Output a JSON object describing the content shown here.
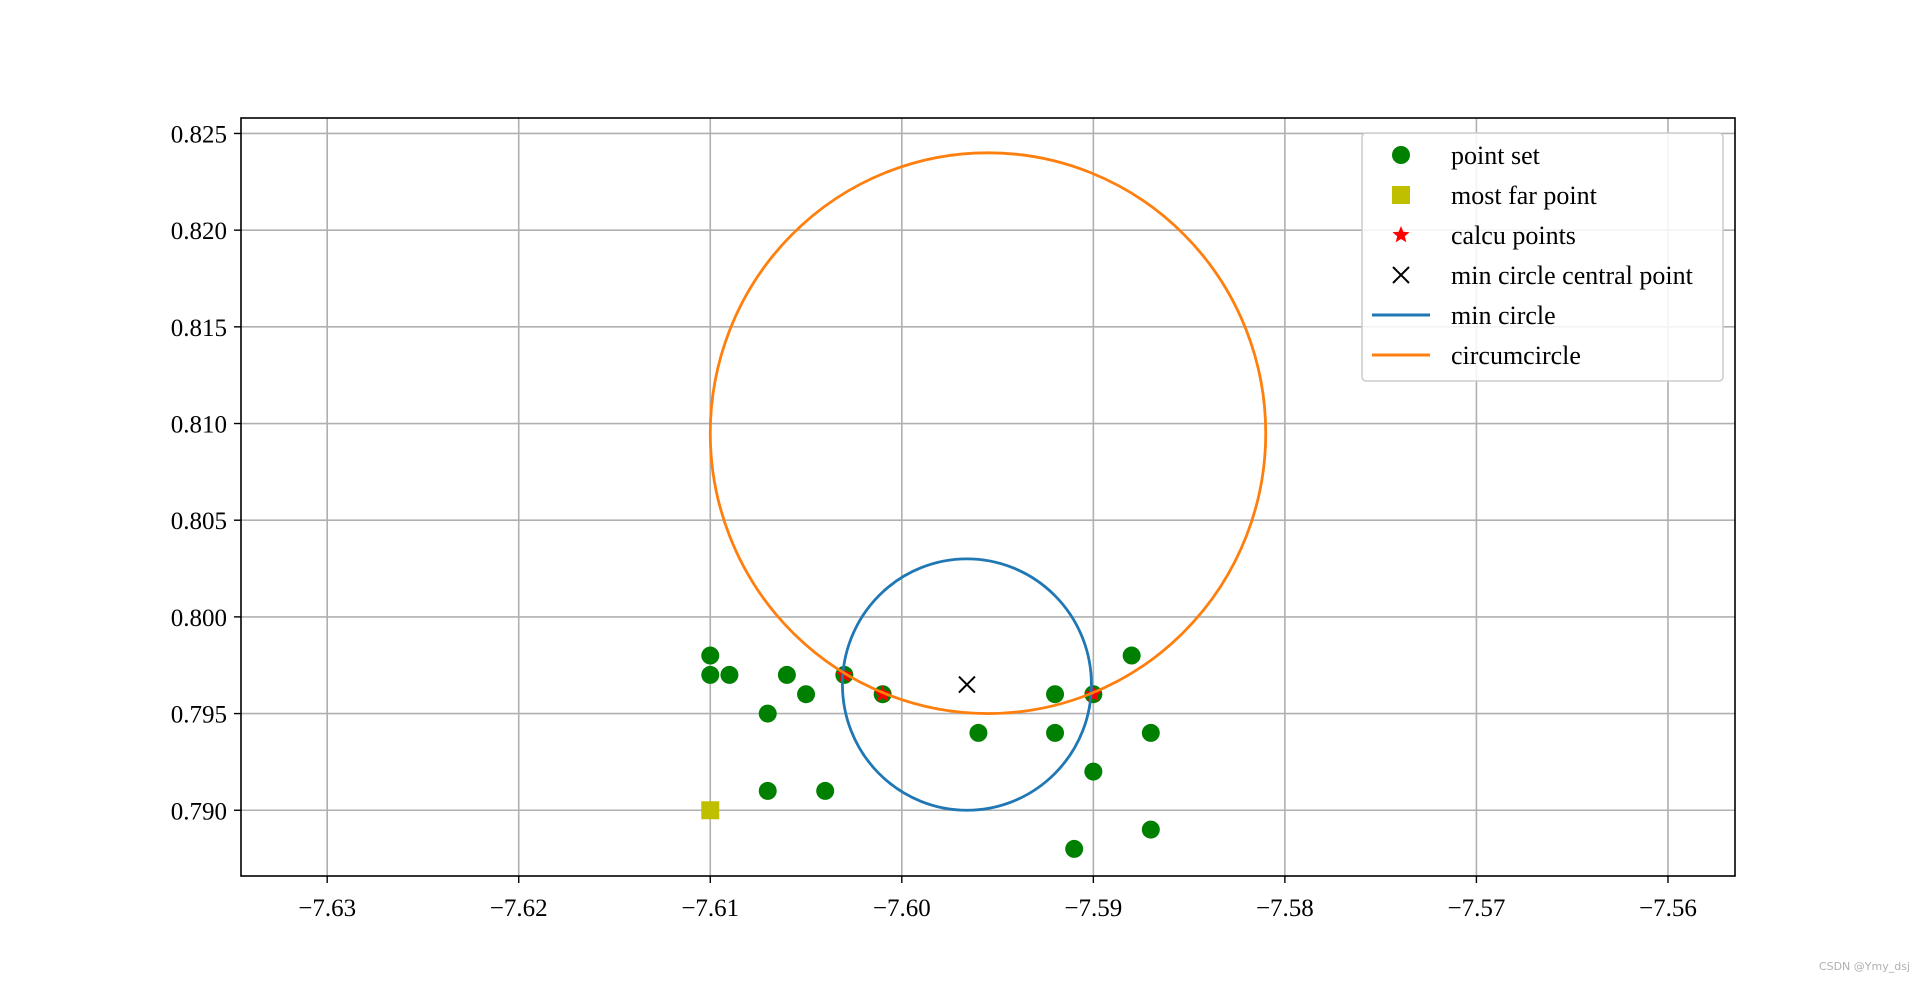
{
  "chart_data": {
    "type": "scatter",
    "title": "",
    "xlabel": "",
    "ylabel": "",
    "xlim": [
      -7.6345,
      -7.5565
    ],
    "ylim": [
      0.7866,
      0.8258
    ],
    "xticks": [
      -7.63,
      -7.62,
      -7.61,
      -7.6,
      -7.59,
      -7.58,
      -7.57,
      -7.56
    ],
    "xtick_labels": [
      "−7.63",
      "−7.62",
      "−7.61",
      "−7.60",
      "−7.59",
      "−7.58",
      "−7.57",
      "−7.56"
    ],
    "yticks": [
      0.79,
      0.795,
      0.8,
      0.805,
      0.81,
      0.815,
      0.82,
      0.825
    ],
    "ytick_labels": [
      "0.790",
      "0.795",
      "0.800",
      "0.805",
      "0.810",
      "0.815",
      "0.820",
      "0.825"
    ],
    "grid": true,
    "legend_position": "top-right",
    "point_set": {
      "name": "point set",
      "color": "#008000",
      "points": [
        [
          -7.61,
          0.798
        ],
        [
          -7.61,
          0.797
        ],
        [
          -7.609,
          0.797
        ],
        [
          -7.606,
          0.797
        ],
        [
          -7.603,
          0.797
        ],
        [
          -7.605,
          0.796
        ],
        [
          -7.601,
          0.796
        ],
        [
          -7.607,
          0.795
        ],
        [
          -7.607,
          0.791
        ],
        [
          -7.604,
          0.791
        ],
        [
          -7.596,
          0.794
        ],
        [
          -7.592,
          0.796
        ],
        [
          -7.59,
          0.796
        ],
        [
          -7.592,
          0.794
        ],
        [
          -7.588,
          0.798
        ],
        [
          -7.587,
          0.794
        ],
        [
          -7.59,
          0.792
        ],
        [
          -7.587,
          0.789
        ],
        [
          -7.591,
          0.788
        ]
      ]
    },
    "most_far_point": {
      "name": "most far point",
      "color": "#bfbf00",
      "points": [
        [
          -7.61,
          0.79
        ]
      ]
    },
    "calcu_points": {
      "name": "calcu points",
      "color": "#ff0000",
      "points": [
        [
          -7.603,
          0.797
        ],
        [
          -7.601,
          0.796
        ],
        [
          -7.59,
          0.796
        ]
      ]
    },
    "min_circle_center": {
      "name": "min circle central point",
      "color": "#000000",
      "points": [
        [
          -7.5966,
          0.7965
        ]
      ]
    },
    "min_circle": {
      "name": "min circle",
      "color": "#1f77b4",
      "center": [
        -7.5966,
        0.7965
      ],
      "radius": 0.0065
    },
    "circumcircle": {
      "name": "circumcircle",
      "color": "#ff7f0e",
      "center": [
        -7.5955,
        0.8095
      ],
      "radius": 0.0145
    },
    "legend": [
      {
        "label": "point set",
        "marker": "circle",
        "color": "#008000"
      },
      {
        "label": "most far point",
        "marker": "square",
        "color": "#bfbf00"
      },
      {
        "label": "calcu points",
        "marker": "star",
        "color": "#ff0000"
      },
      {
        "label": "min circle central point",
        "marker": "x",
        "color": "#000000"
      },
      {
        "label": "min circle",
        "marker": "line",
        "color": "#1f77b4"
      },
      {
        "label": "circumcircle",
        "marker": "line",
        "color": "#ff7f0e"
      }
    ]
  },
  "watermark": "CSDN @Ymy_dsj"
}
